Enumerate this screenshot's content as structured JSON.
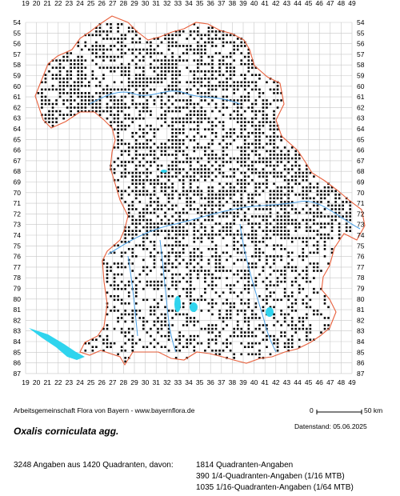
{
  "map": {
    "columns": [
      "19",
      "20",
      "21",
      "22",
      "23",
      "24",
      "25",
      "26",
      "27",
      "28",
      "29",
      "30",
      "31",
      "32",
      "33",
      "34",
      "35",
      "36",
      "37",
      "38",
      "39",
      "40",
      "41",
      "42",
      "43",
      "44",
      "45",
      "46",
      "47",
      "48",
      "49"
    ],
    "rows": [
      "54",
      "55",
      "56",
      "57",
      "58",
      "59",
      "60",
      "61",
      "62",
      "63",
      "64",
      "65",
      "66",
      "67",
      "68",
      "69",
      "70",
      "71",
      "72",
      "73",
      "74",
      "75",
      "76",
      "77",
      "78",
      "79",
      "80",
      "81",
      "82",
      "83",
      "84",
      "85",
      "86",
      "87"
    ],
    "colors": {
      "grid": "#c8c8c8",
      "border": "#e8603c",
      "rivers": "#4aa0e6",
      "lakes": "#2fd4ee",
      "districts": "#9a9a9a",
      "dots": "#000000"
    }
  },
  "footer": {
    "credit": "Arbeitsgemeinschaft Flora von Bayern - www.bayernflora.de",
    "scale_zero": "0",
    "scale_end": "50 km",
    "date_label": "Datenstand: 05.06.2025",
    "species": "Oxalis corniculata agg.",
    "summary": "3248 Angaben aus 1420 Quadranten, davon:",
    "detail_1": "1814 Quadranten-Angaben",
    "detail_2": "390 1/4-Quadranten-Angaben (1/16 MTB)",
    "detail_3": "1035 1/16-Quadranten-Angaben (1/64 MTB)"
  }
}
